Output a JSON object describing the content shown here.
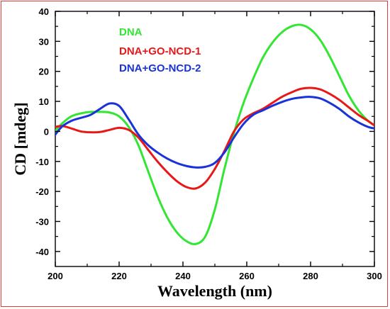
{
  "chart_data": {
    "type": "line",
    "xlabel": "Wavelength (nm)",
    "ylabel": "CD [mdeg]",
    "xlim": [
      200,
      300
    ],
    "ylim": [
      -45,
      40
    ],
    "xticks": [
      200,
      220,
      240,
      260,
      280,
      300
    ],
    "yticks": [
      -40,
      -30,
      -20,
      -10,
      0,
      10,
      20,
      30,
      40
    ],
    "grid": false,
    "legend": "top-center",
    "series": [
      {
        "name": "DNA",
        "color": "#33e633",
        "x": [
          199,
          202,
          205,
          208,
          211,
          214,
          217,
          220,
          223,
          226,
          229,
          232,
          235,
          238,
          241,
          244,
          247,
          250,
          253,
          256,
          259,
          262,
          265,
          268,
          271,
          274,
          277,
          280,
          283,
          286,
          289,
          292,
          295,
          298,
          300
        ],
        "y": [
          -1.0,
          2.5,
          5.0,
          6.0,
          6.5,
          6.5,
          6.3,
          5.0,
          1.5,
          -4.5,
          -13.0,
          -21.5,
          -28.5,
          -33.5,
          -36.5,
          -37.5,
          -35.0,
          -26.0,
          -12.5,
          -0.5,
          9.5,
          17.5,
          24.5,
          29.5,
          33.0,
          35.0,
          35.5,
          34.0,
          30.5,
          25.0,
          18.5,
          12.0,
          7.0,
          3.5,
          2.0
        ]
      },
      {
        "name": "DNA+GO-NCD-1",
        "color": "#e81818",
        "x": [
          199,
          202,
          205,
          208,
          211,
          214,
          217,
          220,
          223,
          226,
          229,
          232,
          235,
          238,
          241,
          244,
          247,
          250,
          253,
          256,
          259,
          262,
          265,
          268,
          271,
          274,
          277,
          280,
          283,
          286,
          289,
          292,
          295,
          298,
          300
        ],
        "y": [
          1.2,
          1.8,
          1.0,
          0.0,
          -0.3,
          -0.2,
          0.5,
          1.2,
          0.5,
          -2.0,
          -6.0,
          -10.0,
          -13.5,
          -16.5,
          -18.5,
          -19.0,
          -17.0,
          -12.5,
          -6.5,
          0.0,
          4.0,
          6.0,
          7.5,
          9.5,
          11.5,
          13.0,
          14.2,
          14.5,
          14.0,
          12.5,
          10.5,
          8.0,
          5.5,
          3.5,
          2.0
        ]
      },
      {
        "name": "DNA+GO-NCD-2",
        "color": "#1a33d9",
        "x": [
          199,
          202,
          205,
          208,
          211,
          214,
          217,
          220,
          223,
          226,
          229,
          232,
          235,
          238,
          241,
          244,
          247,
          250,
          253,
          256,
          259,
          262,
          265,
          268,
          271,
          274,
          277,
          280,
          283,
          286,
          289,
          292,
          295,
          298,
          300
        ],
        "y": [
          -2.5,
          1.5,
          3.5,
          4.5,
          5.5,
          7.5,
          9.3,
          8.5,
          4.0,
          -1.0,
          -4.5,
          -7.0,
          -9.0,
          -10.5,
          -11.5,
          -12.0,
          -11.8,
          -10.5,
          -7.0,
          -2.0,
          2.5,
          5.5,
          7.0,
          8.5,
          9.8,
          10.8,
          11.3,
          11.5,
          11.0,
          9.5,
          7.5,
          5.0,
          3.0,
          1.5,
          1.0
        ]
      }
    ]
  }
}
